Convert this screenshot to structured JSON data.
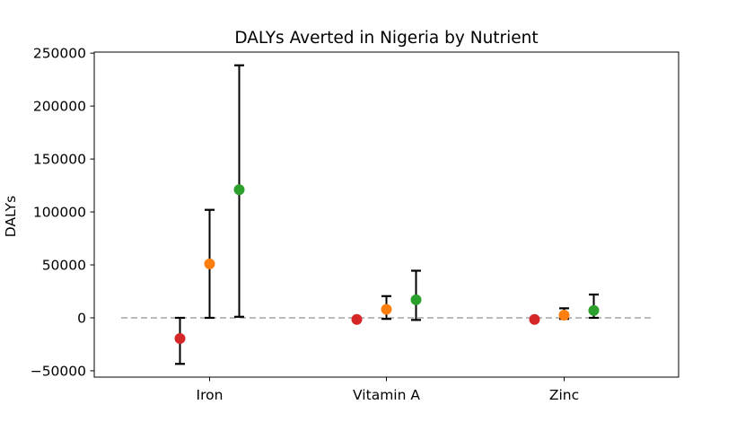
{
  "chart_data": {
    "type": "scatter",
    "title": "DALYs Averted in Nigeria by Nutrient",
    "xlabel": "",
    "ylabel": "DALYs",
    "categories": [
      "Iron",
      "Vitamin A",
      "Zinc"
    ],
    "yticks": [
      -50000,
      0,
      50000,
      100000,
      150000,
      200000,
      250000
    ],
    "ytick_labels": [
      "−50000",
      "0",
      "50000",
      "100000",
      "150000",
      "200000",
      "250000"
    ],
    "ylim": [
      -56000,
      251000
    ],
    "reference_line": {
      "y": 0,
      "color": "#bbbbbb",
      "style": "dashed"
    },
    "legend": "none",
    "grid": false,
    "series": [
      {
        "color": "#d62728",
        "points": [
          {
            "category": "Iron",
            "value": -19500,
            "low": -43500,
            "high": 0
          },
          {
            "category": "Vitamin A",
            "value": -1500,
            "low": null,
            "high": null
          },
          {
            "category": "Zinc",
            "value": -1500,
            "low": null,
            "high": null
          }
        ]
      },
      {
        "color": "#ff7f0e",
        "points": [
          {
            "category": "Iron",
            "value": 51000,
            "low": 0,
            "high": 102000
          },
          {
            "category": "Vitamin A",
            "value": 8000,
            "low": -1000,
            "high": 20500
          },
          {
            "category": "Zinc",
            "value": 2500,
            "low": -1000,
            "high": 9000
          }
        ]
      },
      {
        "color": "#2ca02c",
        "points": [
          {
            "category": "Iron",
            "value": 121000,
            "low": 1000,
            "high": 238500
          },
          {
            "category": "Vitamin A",
            "value": 17000,
            "low": -2000,
            "high": 44500
          },
          {
            "category": "Zinc",
            "value": 7000,
            "low": 0,
            "high": 22000
          }
        ]
      }
    ]
  }
}
